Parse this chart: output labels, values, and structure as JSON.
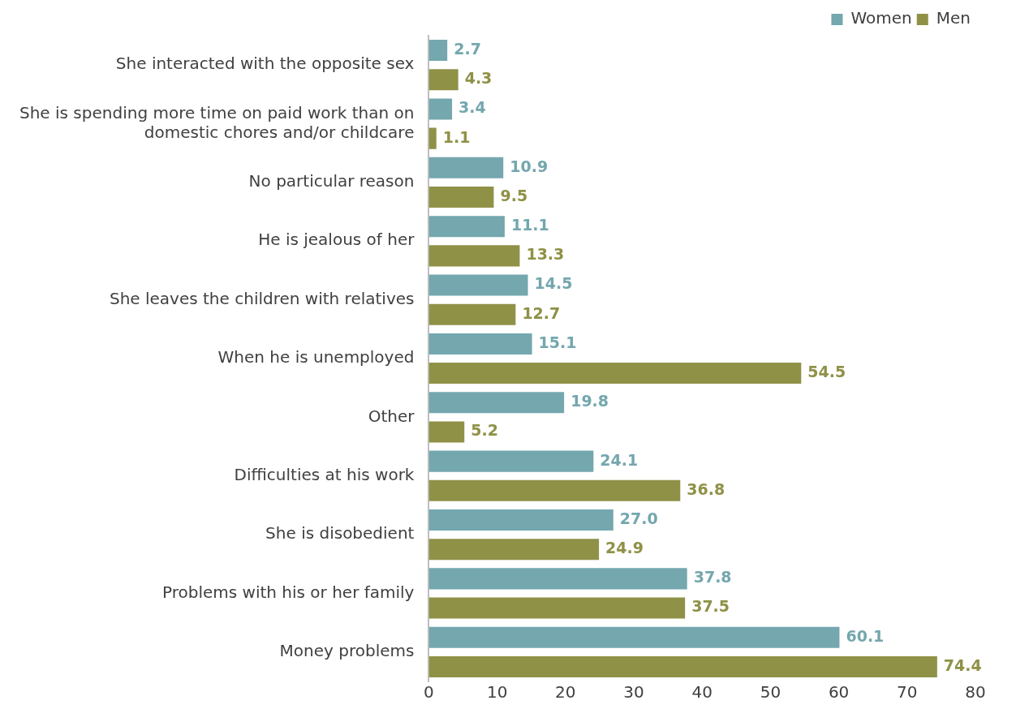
{
  "chart_data": {
    "type": "bar",
    "orientation": "horizontal",
    "categories": [
      "She interacted with the opposite sex",
      "She is spending more time on paid work than on domestic chores and/or childcare",
      "No particular reason",
      "He is jealous of her",
      "She leaves the children with relatives",
      "When he is unemployed",
      "Other",
      "Difficulties at his work",
      "She is disobedient",
      "Problems with his or her family",
      "Money problems"
    ],
    "series": [
      {
        "name": "Women",
        "color": "#74a7ae",
        "values": [
          2.7,
          3.4,
          10.9,
          11.1,
          14.5,
          15.1,
          19.8,
          24.1,
          27.0,
          37.8,
          60.1
        ],
        "value_labels": [
          "2.7",
          "3.4",
          "10.9",
          "11.1",
          "14.5",
          "15.1",
          "19.8",
          "24.1",
          "27.0",
          "37.8",
          "60.1"
        ]
      },
      {
        "name": "Men",
        "color": "#8f9147",
        "values": [
          4.3,
          1.1,
          9.5,
          13.3,
          12.7,
          54.5,
          5.2,
          36.8,
          24.9,
          37.5,
          74.4
        ],
        "value_labels": [
          "4.3",
          "1.1",
          "9.5",
          "13.3",
          "12.7",
          "54.5",
          "5.2",
          "36.8",
          "24.9",
          "37.5",
          "74.4"
        ]
      }
    ],
    "xlim": [
      0,
      80
    ],
    "xticks": [
      0,
      10,
      20,
      30,
      40,
      50,
      60,
      70,
      80
    ],
    "grid": false,
    "legend": "top right"
  }
}
